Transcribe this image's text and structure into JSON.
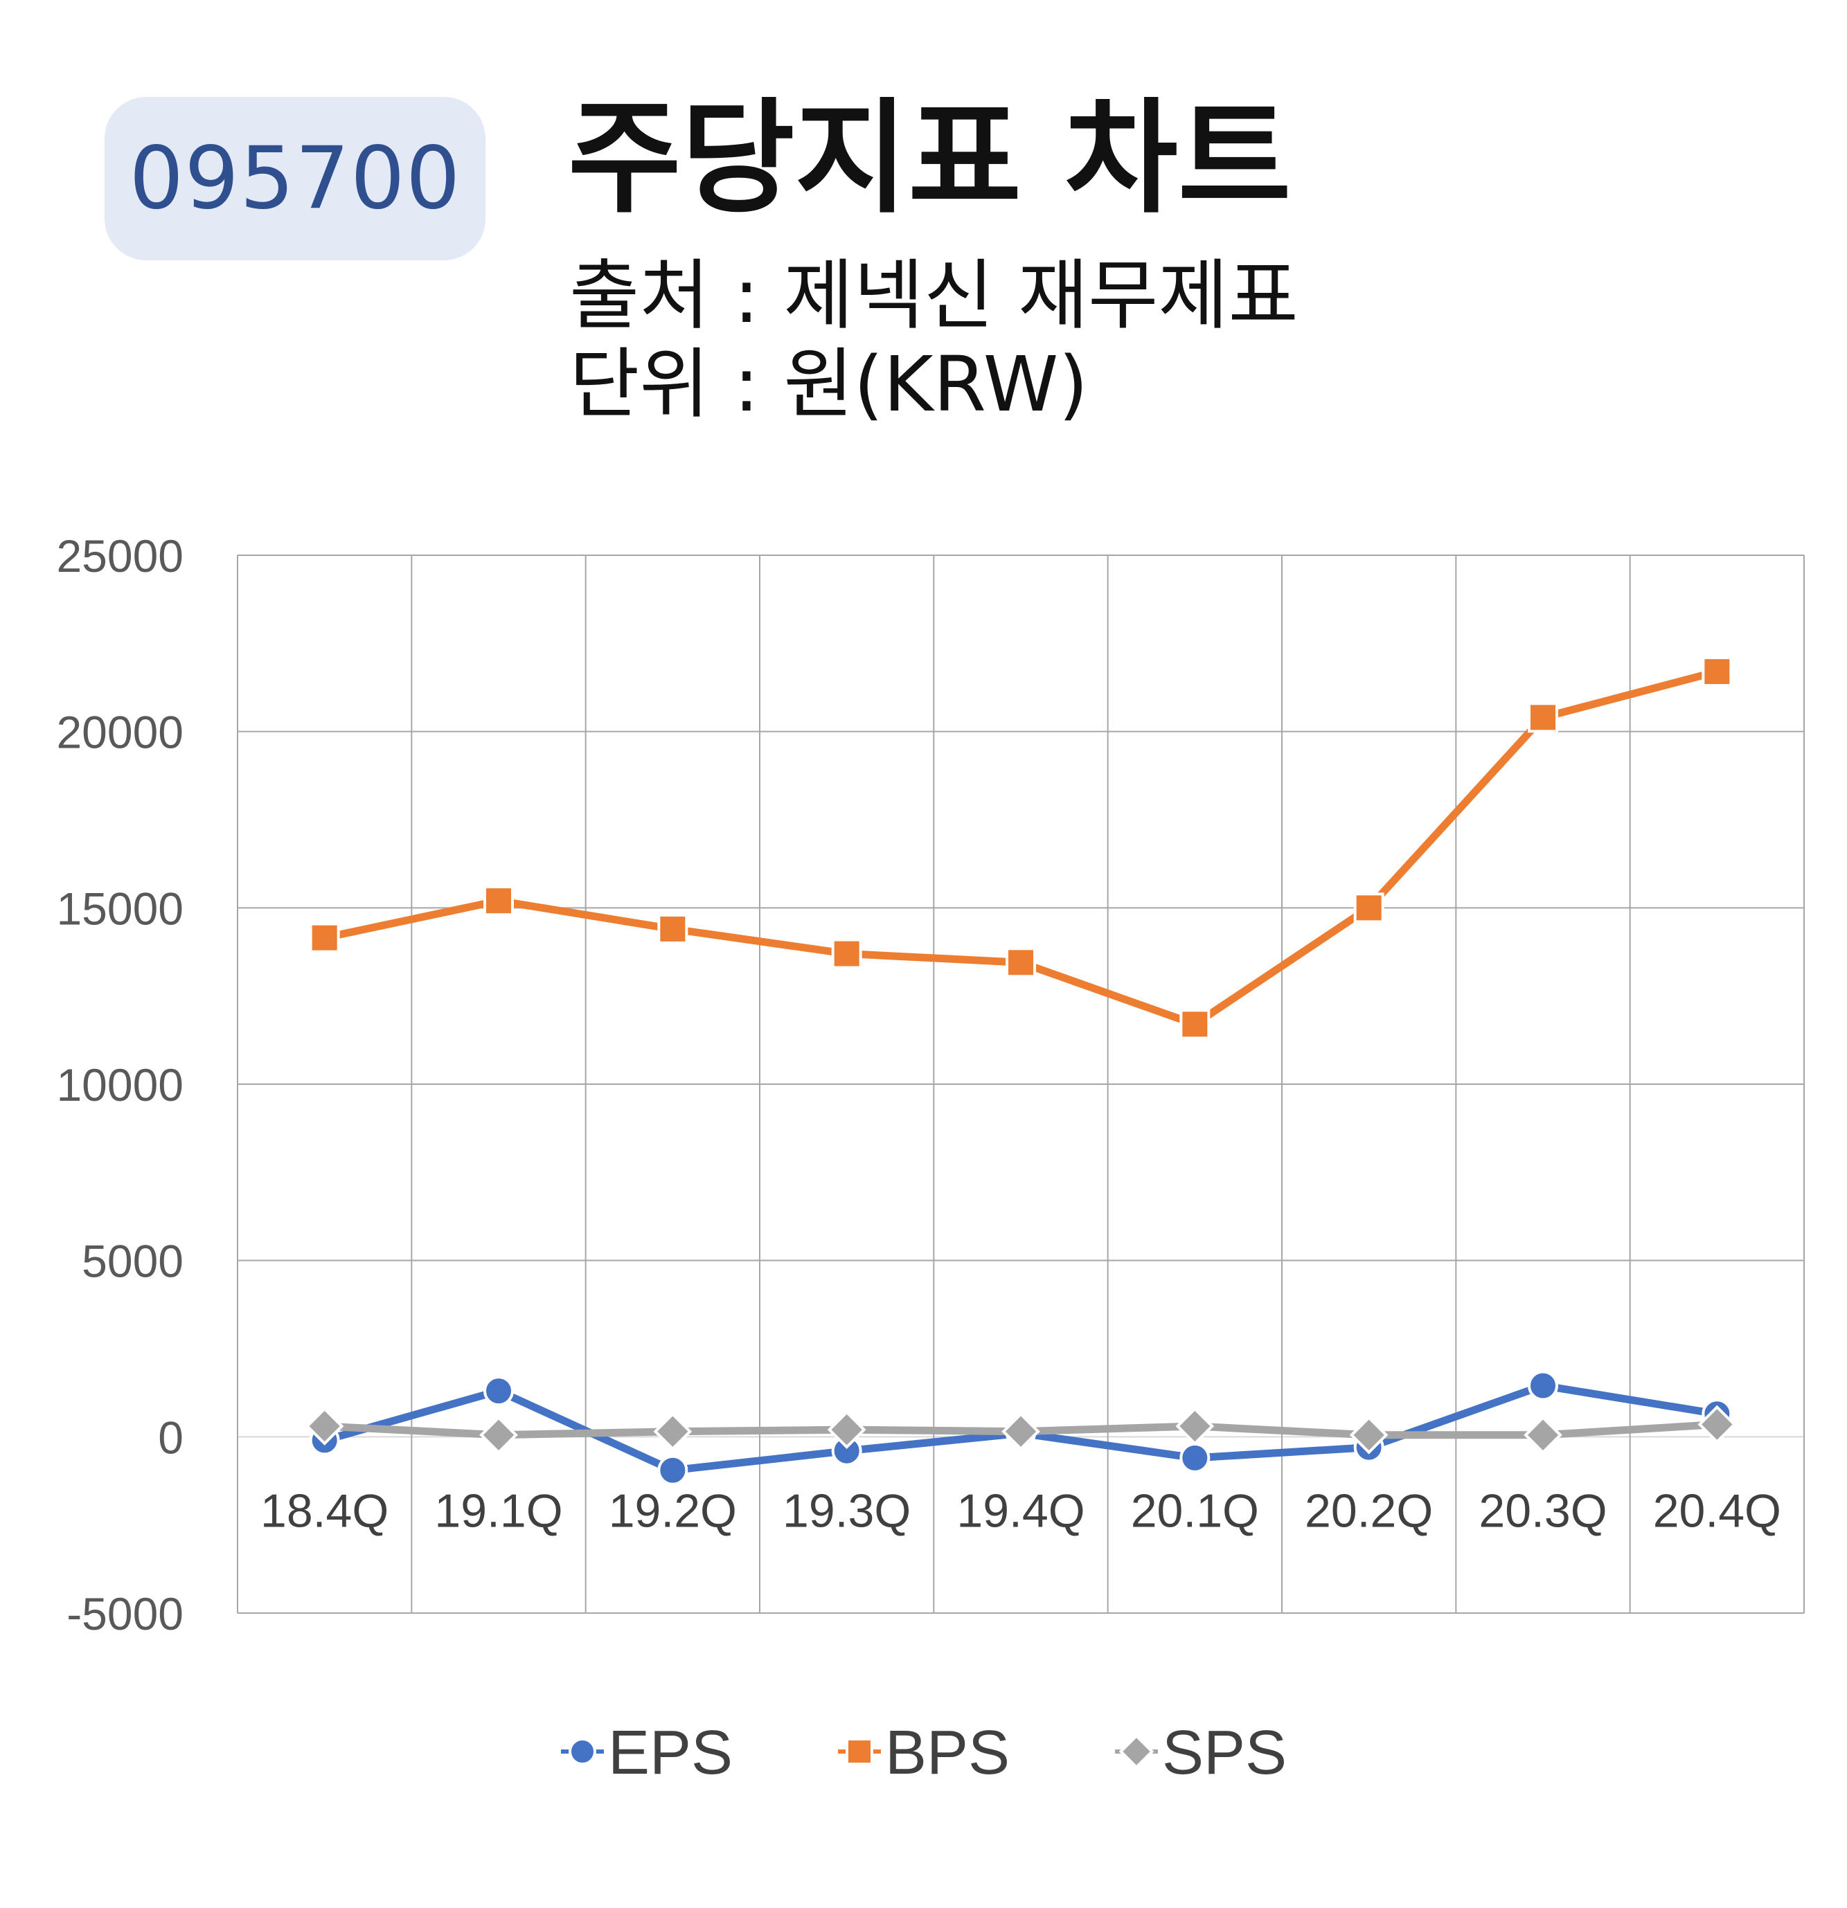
{
  "header": {
    "stock_code": "095700",
    "title": "주당지표 차트",
    "source": "출처 : 제넥신 재무제표",
    "unit": "단위 : 원(KRW)"
  },
  "colors": {
    "EPS": "#4472c4",
    "BPS": "#ed7d31",
    "SPS": "#a5a5a5",
    "grid": "#a6a6a6",
    "badge_bg": "#e3e9f5",
    "badge_text": "#2f4f8f"
  },
  "chart_data": {
    "type": "line",
    "categories": [
      "18.4Q",
      "19.1Q",
      "19.2Q",
      "19.3Q",
      "19.4Q",
      "20.1Q",
      "20.2Q",
      "20.3Q",
      "20.4Q"
    ],
    "series": [
      {
        "name": "EPS",
        "marker": "circle",
        "values": [
          -100,
          1300,
          -950,
          -400,
          100,
          -600,
          -300,
          1450,
          650
        ]
      },
      {
        "name": "BPS",
        "marker": "square",
        "values": [
          14150,
          15200,
          14400,
          13700,
          13450,
          11700,
          15000,
          20400,
          21700
        ]
      },
      {
        "name": "SPS",
        "marker": "diamond",
        "values": [
          300,
          50,
          150,
          200,
          150,
          300,
          50,
          50,
          350
        ]
      }
    ],
    "ylim": [
      -5000,
      25000
    ],
    "yticks": [
      "25000",
      "20000",
      "15000",
      "10000",
      "5000",
      "0",
      "-5000"
    ],
    "grid": true,
    "legend": "bottom"
  }
}
